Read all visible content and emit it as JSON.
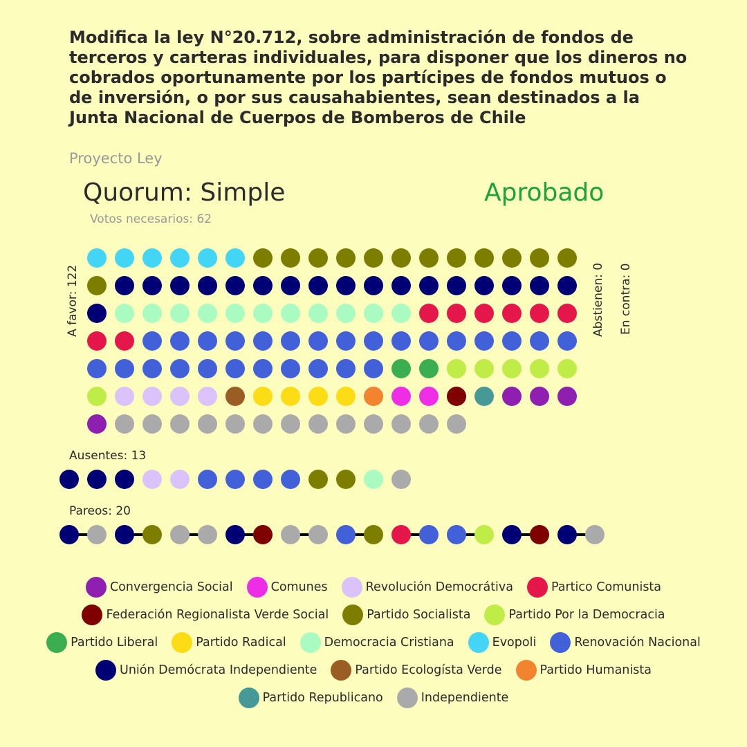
{
  "title": "Modifica la ley N°20.712, sobre administración de fondos de terceros y carteras individuales, para disponer que los dineros no cobrados oportunamente por los partícipes de fondos mutuos o de inversión, o por sus causahabientes, sean destinados a la Junta Nacional de Cuerpos de Bomberos de Chile",
  "doc_type": "Proyecto Ley",
  "quorum": "Quorum: Simple",
  "result": "Aprobado",
  "result_color": "#1ca33a",
  "votes_needed": "Votos necesarios: 62",
  "favor_label": "A favor: 122",
  "abstain_label": "Abstienen: 0",
  "against_label": "En contra: 0",
  "absent_label": "Ausentes: 13",
  "pairs_label": "Pareos: 20",
  "parties": {
    "CS": {
      "name": "Convergencia Social",
      "color": "#8e1fb0"
    },
    "CO": {
      "name": "Comunes",
      "color": "#ee2ee6"
    },
    "RD": {
      "name": "Revolución Democrátiva",
      "color": "#dbc2fb"
    },
    "PC": {
      "name": "Partico Comunista",
      "color": "#e5174a"
    },
    "FR": {
      "name": "Federación Regionalista Verde Social",
      "color": "#7e0000"
    },
    "PS": {
      "name": "Partido Socialista",
      "color": "#7d7d00"
    },
    "PPD": {
      "name": "Partido Por la Democracia",
      "color": "#c0ec48"
    },
    "PL": {
      "name": "Partido Liberal",
      "color": "#3aae51"
    },
    "PR": {
      "name": "Partido Radical",
      "color": "#fbdc15"
    },
    "DC": {
      "name": "Democracia Cristiana",
      "color": "#aafbc2"
    },
    "EV": {
      "name": "Evopoli",
      "color": "#43d5f6"
    },
    "RN": {
      "name": "Renovación Nacional",
      "color": "#4260d8"
    },
    "UDI": {
      "name": "Unión Demócrata Independiente",
      "color": "#000074"
    },
    "PEV": {
      "name": "Partido Ecologísta Verde",
      "color": "#9a5e25"
    },
    "PH": {
      "name": "Partido Humanista",
      "color": "#f28430"
    },
    "REP": {
      "name": "Partido Republicano",
      "color": "#469997"
    },
    "IND": {
      "name": "Independiente",
      "color": "#aaaaaa"
    }
  },
  "chart_data": {
    "type": "seat-dot-chart",
    "title": "Modifica la ley N°20.712, sobre administración de fondos de terceros y carteras individuales, para disponer que los dineros no cobrados oportunamente por los partícipes de fondos mutuos o de inversión, o por sus causahabientes, sean destinados a la Junta Nacional de Cuerpos de Bomberos de Chile",
    "totals": {
      "a_favor": 122,
      "abstienen": 0,
      "en_contra": 0,
      "ausentes": 13,
      "pareos": 20,
      "votos_necesarios": 62
    },
    "favor_rows": [
      [
        "EV",
        "EV",
        "EV",
        "EV",
        "EV",
        "EV",
        "PS",
        "PS",
        "PS",
        "PS",
        "PS",
        "PS",
        "PS",
        "PS",
        "PS",
        "PS",
        "PS",
        "PS"
      ],
      [
        "PS",
        "UDI",
        "UDI",
        "UDI",
        "UDI",
        "UDI",
        "UDI",
        "UDI",
        "UDI",
        "UDI",
        "UDI",
        "UDI",
        "UDI",
        "UDI",
        "UDI",
        "UDI",
        "UDI",
        "UDI"
      ],
      [
        "UDI",
        "DC",
        "DC",
        "DC",
        "DC",
        "DC",
        "DC",
        "DC",
        "DC",
        "DC",
        "DC",
        "DC",
        "PC",
        "PC",
        "PC",
        "PC",
        "PC",
        "PC"
      ],
      [
        "PC",
        "PC",
        "RN",
        "RN",
        "RN",
        "RN",
        "RN",
        "RN",
        "RN",
        "RN",
        "RN",
        "RN",
        "RN",
        "RN",
        "RN",
        "RN",
        "RN",
        "RN"
      ],
      [
        "RN",
        "RN",
        "RN",
        "RN",
        "RN",
        "RN",
        "RN",
        "RN",
        "RN",
        "RN",
        "RN",
        "PL",
        "PL",
        "PPD",
        "PPD",
        "PPD",
        "PPD",
        "PPD"
      ],
      [
        "PPD",
        "RD",
        "RD",
        "RD",
        "RD",
        "PEV",
        "PR",
        "PR",
        "PR",
        "PR",
        "PH",
        "CO",
        "CO",
        "FR",
        "REP",
        "CS",
        "CS",
        "CS"
      ],
      [
        "CS",
        "IND",
        "IND",
        "IND",
        "IND",
        "IND",
        "IND",
        "IND",
        "IND",
        "IND",
        "IND",
        "IND",
        "IND",
        "IND"
      ]
    ],
    "absent": [
      "UDI",
      "UDI",
      "UDI",
      "RD",
      "RD",
      "RN",
      "RN",
      "RN",
      "RN",
      "PS",
      "PS",
      "DC",
      "IND"
    ],
    "pairs": [
      [
        "UDI",
        "IND"
      ],
      [
        "UDI",
        "PS"
      ],
      [
        "IND",
        "IND"
      ],
      [
        "UDI",
        "FR"
      ],
      [
        "IND",
        "IND"
      ],
      [
        "RN",
        "PS"
      ],
      [
        "PC",
        "RN"
      ],
      [
        "RN",
        "PPD"
      ],
      [
        "UDI",
        "FR"
      ],
      [
        "UDI",
        "IND"
      ]
    ],
    "legend_rows": [
      [
        "CS",
        "CO",
        "RD",
        "PC"
      ],
      [
        "FR",
        "PS",
        "PPD"
      ],
      [
        "PL",
        "PR",
        "DC",
        "EV",
        "RN"
      ],
      [
        "UDI",
        "PEV",
        "PH"
      ],
      [
        "REP",
        "IND"
      ]
    ]
  }
}
